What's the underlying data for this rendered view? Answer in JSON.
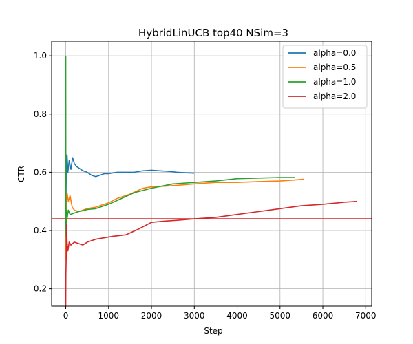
{
  "chart_data": {
    "type": "line",
    "title": "HybridLinUCB top40 NSim=3",
    "xlabel": "Step",
    "ylabel": "CTR",
    "xlim": [
      -330,
      7140
    ],
    "ylim": [
      0.14,
      1.05
    ],
    "xticks": [
      0,
      1000,
      2000,
      3000,
      4000,
      5000,
      6000,
      7000
    ],
    "yticks": [
      0.2,
      0.4,
      0.6,
      0.8,
      1.0
    ],
    "xtick_labels": [
      "0",
      "1000",
      "2000",
      "3000",
      "4000",
      "5000",
      "6000",
      "7000"
    ],
    "ytick_labels": [
      "0.2",
      "0.4",
      "0.6",
      "0.8",
      "1.0"
    ],
    "grid": true,
    "legend_position": "top-right",
    "hline": {
      "y": 0.44,
      "color": "#d62728"
    },
    "series": [
      {
        "name": "alpha=0.0",
        "color": "#1f77b4",
        "points": [
          [
            0,
            0.3
          ],
          [
            5,
            0.5
          ],
          [
            15,
            0.63
          ],
          [
            30,
            0.66
          ],
          [
            50,
            0.6
          ],
          [
            80,
            0.64
          ],
          [
            120,
            0.61
          ],
          [
            160,
            0.65
          ],
          [
            200,
            0.63
          ],
          [
            250,
            0.62
          ],
          [
            300,
            0.615
          ],
          [
            400,
            0.605
          ],
          [
            500,
            0.6
          ],
          [
            600,
            0.59
          ],
          [
            700,
            0.585
          ],
          [
            800,
            0.59
          ],
          [
            900,
            0.595
          ],
          [
            1000,
            0.595
          ],
          [
            1200,
            0.6
          ],
          [
            1400,
            0.6
          ],
          [
            1600,
            0.6
          ],
          [
            1800,
            0.605
          ],
          [
            2000,
            0.607
          ],
          [
            2200,
            0.605
          ],
          [
            2400,
            0.603
          ],
          [
            2600,
            0.6
          ],
          [
            2800,
            0.598
          ],
          [
            3000,
            0.597
          ]
        ]
      },
      {
        "name": "alpha=0.5",
        "color": "#ff7f0e",
        "points": [
          [
            0,
            0.3
          ],
          [
            10,
            0.45
          ],
          [
            30,
            0.53
          ],
          [
            60,
            0.5
          ],
          [
            100,
            0.52
          ],
          [
            150,
            0.48
          ],
          [
            200,
            0.47
          ],
          [
            300,
            0.465
          ],
          [
            400,
            0.47
          ],
          [
            500,
            0.475
          ],
          [
            700,
            0.48
          ],
          [
            1000,
            0.495
          ],
          [
            1200,
            0.51
          ],
          [
            1500,
            0.525
          ],
          [
            1800,
            0.545
          ],
          [
            2000,
            0.55
          ],
          [
            2300,
            0.552
          ],
          [
            2600,
            0.555
          ],
          [
            3000,
            0.56
          ],
          [
            3500,
            0.565
          ],
          [
            4000,
            0.565
          ],
          [
            4500,
            0.568
          ],
          [
            5000,
            0.57
          ],
          [
            5300,
            0.573
          ],
          [
            5550,
            0.576
          ]
        ]
      },
      {
        "name": "alpha=1.0",
        "color": "#2ca02c",
        "points": [
          [
            0,
            1.0
          ],
          [
            3,
            0.5
          ],
          [
            8,
            0.38
          ],
          [
            15,
            0.47
          ],
          [
            30,
            0.44
          ],
          [
            60,
            0.47
          ],
          [
            100,
            0.455
          ],
          [
            200,
            0.46
          ],
          [
            300,
            0.465
          ],
          [
            400,
            0.468
          ],
          [
            500,
            0.472
          ],
          [
            700,
            0.475
          ],
          [
            1000,
            0.49
          ],
          [
            1300,
            0.51
          ],
          [
            1600,
            0.53
          ],
          [
            2000,
            0.545
          ],
          [
            2500,
            0.56
          ],
          [
            3000,
            0.565
          ],
          [
            3500,
            0.57
          ],
          [
            4000,
            0.578
          ],
          [
            4500,
            0.58
          ],
          [
            5000,
            0.582
          ],
          [
            5350,
            0.582
          ]
        ]
      },
      {
        "name": "alpha=2.0",
        "color": "#d62728",
        "points": [
          [
            0,
            0.14
          ],
          [
            3,
            0.25
          ],
          [
            10,
            0.3
          ],
          [
            20,
            0.42
          ],
          [
            30,
            0.36
          ],
          [
            50,
            0.33
          ],
          [
            80,
            0.36
          ],
          [
            120,
            0.35
          ],
          [
            200,
            0.36
          ],
          [
            300,
            0.355
          ],
          [
            400,
            0.35
          ],
          [
            500,
            0.36
          ],
          [
            700,
            0.37
          ],
          [
            900,
            0.375
          ],
          [
            1100,
            0.38
          ],
          [
            1400,
            0.385
          ],
          [
            1700,
            0.405
          ],
          [
            2000,
            0.428
          ],
          [
            2300,
            0.432
          ],
          [
            2600,
            0.435
          ],
          [
            3000,
            0.44
          ],
          [
            3500,
            0.445
          ],
          [
            4000,
            0.455
          ],
          [
            4500,
            0.465
          ],
          [
            5000,
            0.475
          ],
          [
            5500,
            0.485
          ],
          [
            6000,
            0.49
          ],
          [
            6500,
            0.497
          ],
          [
            6800,
            0.5
          ]
        ]
      }
    ]
  }
}
